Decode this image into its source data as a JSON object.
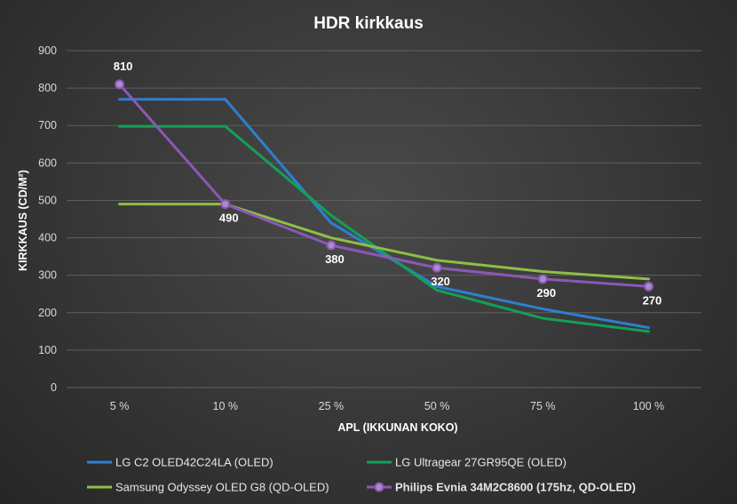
{
  "chart_data": {
    "type": "line",
    "title": "HDR kirkkaus",
    "xlabel": "APL (IKKUNAN KOKO)",
    "ylabel": "KIRKKAUS (CD/M²)",
    "ylim": [
      0,
      900
    ],
    "yticks": [
      "0",
      "100",
      "200",
      "300",
      "400",
      "500",
      "600",
      "700",
      "800",
      "900"
    ],
    "categories": [
      "5 %",
      "10 %",
      "25 %",
      "50 %",
      "75 %",
      "100 %"
    ],
    "grid": true,
    "legend_position": "bottom",
    "series": [
      {
        "name": "LG C2 OLED42C24LA (OLED)",
        "color": "#2e7fd0",
        "values": [
          770,
          770,
          440,
          270,
          210,
          160
        ],
        "markers": false,
        "labels": false
      },
      {
        "name": "LG Ultragear 27GR95QE (OLED)",
        "color": "#13a05a",
        "values": [
          698,
          698,
          460,
          260,
          185,
          150
        ],
        "markers": false,
        "labels": false
      },
      {
        "name": "Samsung Odyssey OLED G8 (QD-OLED)",
        "color": "#8fbe45",
        "values": [
          490,
          490,
          400,
          340,
          310,
          290
        ],
        "markers": false,
        "labels": false
      },
      {
        "name": "Philips Evnia 34M2C8600 (175hz, QD-OLED)",
        "color": "#8b58b5",
        "values": [
          810,
          490,
          380,
          320,
          290,
          270
        ],
        "markers": true,
        "labels": true,
        "legend_text_color": "#1fc35e"
      }
    ],
    "data_labels": [
      "810",
      "490",
      "380",
      "320",
      "290",
      "270"
    ]
  }
}
